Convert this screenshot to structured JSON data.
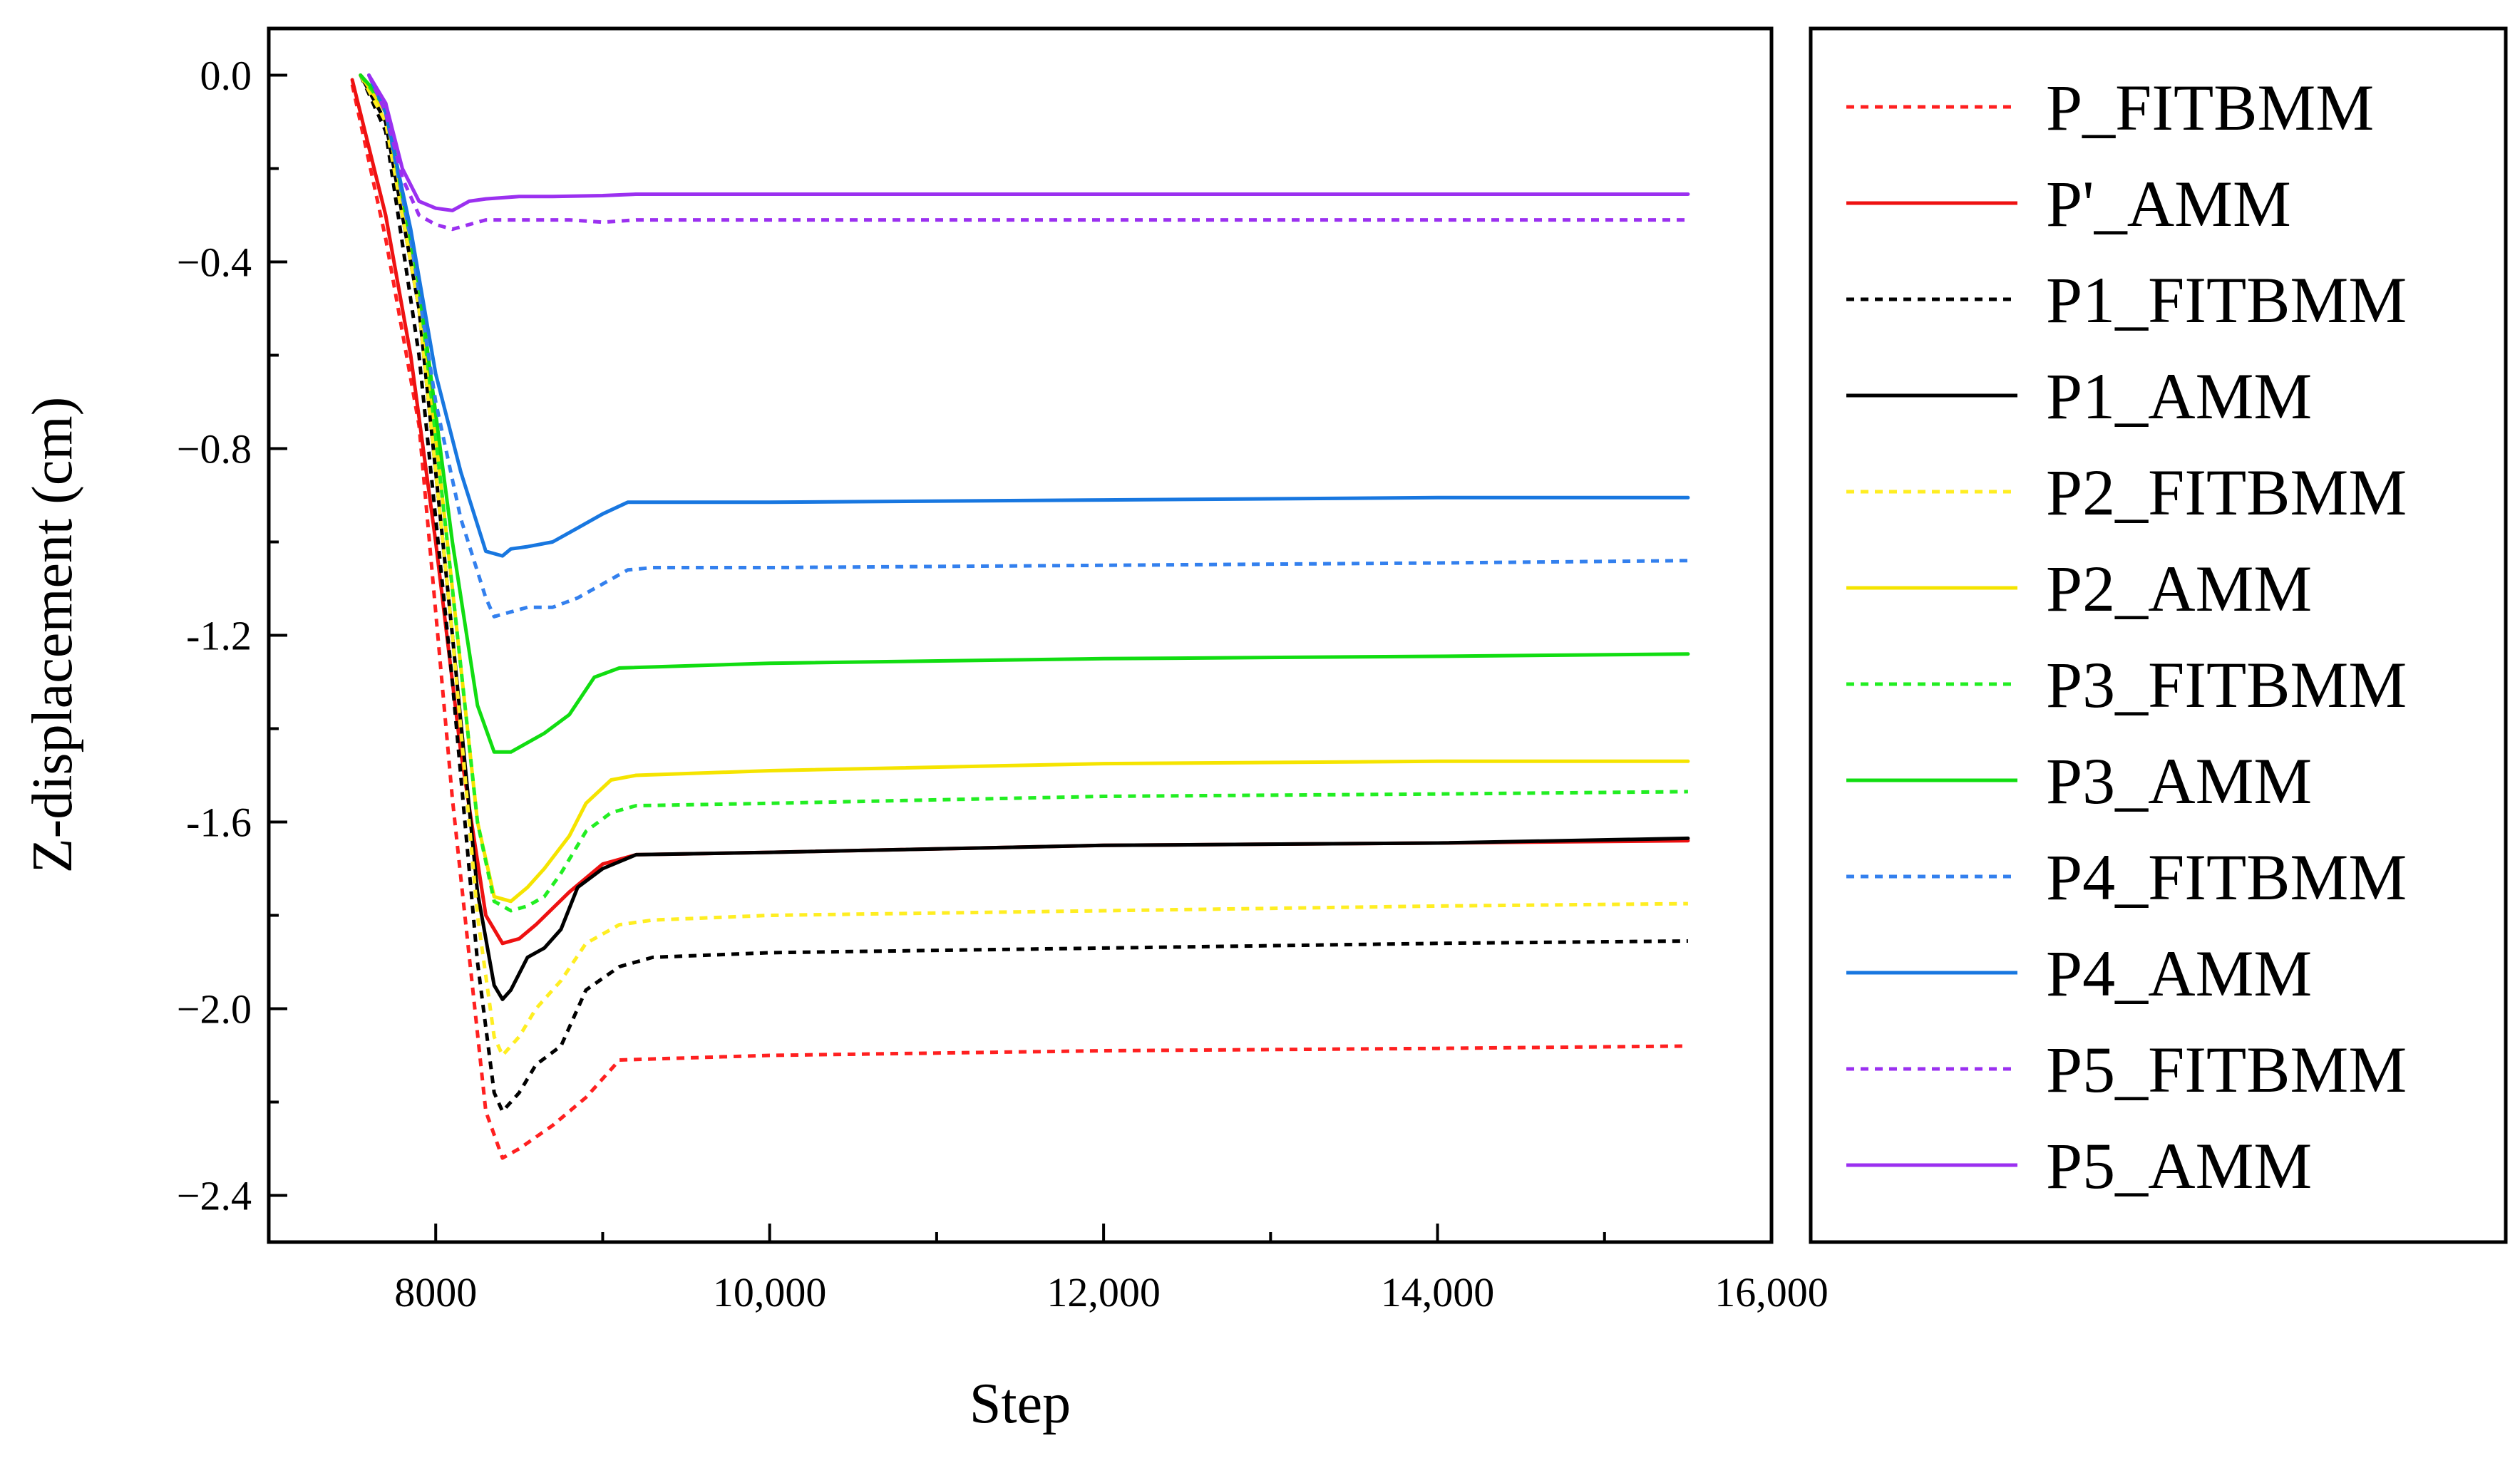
{
  "chart_data": {
    "type": "line",
    "title": "",
    "xlabel": "Step",
    "ylabel": "Z-displacement (cm)",
    "xlim": [
      7000,
      16000
    ],
    "ylim": [
      -2.5,
      0.1
    ],
    "xticks": [
      8000,
      10000,
      12000,
      14000,
      16000
    ],
    "xtick_labels": [
      "8000",
      "10,000",
      "12,000",
      "14,000",
      "16,000"
    ],
    "yticks": [
      0.0,
      -0.4,
      -0.8,
      -1.2,
      -1.6,
      -2.0,
      -2.4
    ],
    "ytick_labels": [
      "0.0",
      "−0.4",
      "−0.8",
      "-1.2",
      "-1.6",
      "−2.0",
      "−2.4"
    ],
    "legend_position": "right, outside plot",
    "series": [
      {
        "name": "P_FITBMM",
        "color": "#ff2020",
        "style": "dashed",
        "x": [
          7500,
          7700,
          7900,
          8100,
          8300,
          8400,
          8500,
          8700,
          8900,
          9100,
          10000,
          12000,
          14000,
          15500
        ],
        "y": [
          -0.02,
          -0.35,
          -0.75,
          -1.55,
          -2.22,
          -2.32,
          -2.3,
          -2.25,
          -2.19,
          -2.11,
          -2.1,
          -2.09,
          -2.085,
          -2.08
        ]
      },
      {
        "name": "P'_AMM",
        "color": "#ee1111",
        "style": "solid",
        "x": [
          7500,
          7700,
          7850,
          8000,
          8150,
          8300,
          8400,
          8500,
          8600,
          8800,
          9000,
          9200,
          10000,
          12000,
          14000,
          15500
        ],
        "y": [
          -0.01,
          -0.3,
          -0.6,
          -1.0,
          -1.45,
          -1.8,
          -1.86,
          -1.85,
          -1.82,
          -1.75,
          -1.69,
          -1.67,
          -1.665,
          -1.65,
          -1.645,
          -1.64
        ]
      },
      {
        "name": "P1_FITBMM",
        "color": "#000000",
        "style": "dashed",
        "x": [
          7550,
          7700,
          7900,
          8100,
          8250,
          8350,
          8400,
          8500,
          8600,
          8750,
          8900,
          9100,
          9300,
          10000,
          12000,
          14000,
          15500
        ],
        "y": [
          0.0,
          -0.12,
          -0.6,
          -1.3,
          -1.9,
          -2.18,
          -2.22,
          -2.18,
          -2.12,
          -2.08,
          -1.96,
          -1.91,
          -1.89,
          -1.88,
          -1.87,
          -1.86,
          -1.855
        ]
      },
      {
        "name": "P1_AMM",
        "color": "#000000",
        "style": "solid",
        "x": [
          7550,
          7700,
          7900,
          8100,
          8250,
          8350,
          8400,
          8450,
          8550,
          8650,
          8750,
          8850,
          9000,
          9200,
          10000,
          12000,
          14000,
          15500
        ],
        "y": [
          0.0,
          -0.1,
          -0.5,
          -1.2,
          -1.75,
          -1.95,
          -1.98,
          -1.96,
          -1.89,
          -1.87,
          -1.83,
          -1.74,
          -1.7,
          -1.67,
          -1.665,
          -1.65,
          -1.645,
          -1.635
        ]
      },
      {
        "name": "P2_FITBMM",
        "color": "#ffee22",
        "style": "dashed",
        "x": [
          7550,
          7700,
          7900,
          8100,
          8250,
          8350,
          8400,
          8500,
          8600,
          8750,
          8900,
          9100,
          9300,
          10000,
          12000,
          14000,
          15500
        ],
        "y": [
          0.0,
          -0.1,
          -0.5,
          -1.2,
          -1.8,
          -2.06,
          -2.1,
          -2.06,
          -2.0,
          -1.94,
          -1.86,
          -1.82,
          -1.81,
          -1.8,
          -1.79,
          -1.78,
          -1.775
        ]
      },
      {
        "name": "P2_AMM",
        "color": "#f5e400",
        "style": "solid",
        "x": [
          7550,
          7700,
          7900,
          8100,
          8250,
          8350,
          8450,
          8550,
          8650,
          8800,
          8900,
          9050,
          9200,
          10000,
          12000,
          14000,
          15500
        ],
        "y": [
          0.0,
          -0.08,
          -0.45,
          -1.1,
          -1.6,
          -1.76,
          -1.77,
          -1.74,
          -1.7,
          -1.63,
          -1.56,
          -1.51,
          -1.5,
          -1.49,
          -1.475,
          -1.47,
          -1.47
        ]
      },
      {
        "name": "P3_FITBMM",
        "color": "#22ee22",
        "style": "dashed",
        "x": [
          7550,
          7700,
          7900,
          8100,
          8250,
          8350,
          8450,
          8550,
          8650,
          8750,
          8900,
          9050,
          9200,
          10000,
          12000,
          14000,
          15500
        ],
        "y": [
          0.0,
          -0.07,
          -0.45,
          -1.1,
          -1.6,
          -1.77,
          -1.79,
          -1.78,
          -1.76,
          -1.71,
          -1.62,
          -1.58,
          -1.565,
          -1.56,
          -1.545,
          -1.54,
          -1.535
        ]
      },
      {
        "name": "P3_AMM",
        "color": "#11dd11",
        "style": "solid",
        "x": [
          7550,
          7700,
          7900,
          8100,
          8250,
          8350,
          8450,
          8550,
          8650,
          8800,
          8950,
          9100,
          10000,
          12000,
          14000,
          15500
        ],
        "y": [
          0.0,
          -0.06,
          -0.45,
          -1.0,
          -1.35,
          -1.45,
          -1.45,
          -1.43,
          -1.41,
          -1.37,
          -1.29,
          -1.27,
          -1.26,
          -1.25,
          -1.245,
          -1.24
        ]
      },
      {
        "name": "P4_FITBMM",
        "color": "#3380ee",
        "style": "dashed",
        "x": [
          7600,
          7700,
          7850,
          8000,
          8150,
          8300,
          8350,
          8450,
          8550,
          8700,
          8850,
          9000,
          9150,
          9300,
          10000,
          12000,
          14000,
          15500
        ],
        "y": [
          0.0,
          -0.08,
          -0.35,
          -0.7,
          -0.95,
          -1.12,
          -1.16,
          -1.15,
          -1.14,
          -1.14,
          -1.12,
          -1.09,
          -1.06,
          -1.055,
          -1.055,
          -1.05,
          -1.045,
          -1.04
        ]
      },
      {
        "name": "P4_AMM",
        "color": "#1877e0",
        "style": "solid",
        "x": [
          7600,
          7700,
          7850,
          8000,
          8150,
          8300,
          8400,
          8450,
          8550,
          8700,
          8850,
          9000,
          9150,
          10000,
          12000,
          14000,
          15500
        ],
        "y": [
          0.0,
          -0.08,
          -0.33,
          -0.64,
          -0.85,
          -1.02,
          -1.03,
          -1.015,
          -1.01,
          -1.0,
          -0.97,
          -0.94,
          -0.915,
          -0.915,
          -0.91,
          -0.905,
          -0.905
        ]
      },
      {
        "name": "P5_FITBMM",
        "color": "#9b30f0",
        "style": "dashed",
        "x": [
          7600,
          7700,
          7800,
          7900,
          8000,
          8100,
          8200,
          8300,
          8400,
          8600,
          8800,
          9000,
          9200,
          10000,
          12000,
          14000,
          15500
        ],
        "y": [
          0.0,
          -0.08,
          -0.22,
          -0.3,
          -0.32,
          -0.33,
          -0.32,
          -0.31,
          -0.31,
          -0.31,
          -0.31,
          -0.315,
          -0.31,
          -0.31,
          -0.31,
          -0.31,
          -0.31
        ]
      },
      {
        "name": "P5_AMM",
        "color": "#9b30f0",
        "style": "solid",
        "x": [
          7600,
          7700,
          7800,
          7900,
          8000,
          8100,
          8200,
          8300,
          8500,
          8700,
          9000,
          9200,
          10000,
          12000,
          14000,
          15500
        ],
        "y": [
          0.0,
          -0.06,
          -0.2,
          -0.27,
          -0.285,
          -0.29,
          -0.27,
          -0.265,
          -0.26,
          -0.26,
          -0.258,
          -0.255,
          -0.255,
          -0.255,
          -0.255,
          -0.255
        ]
      }
    ]
  }
}
